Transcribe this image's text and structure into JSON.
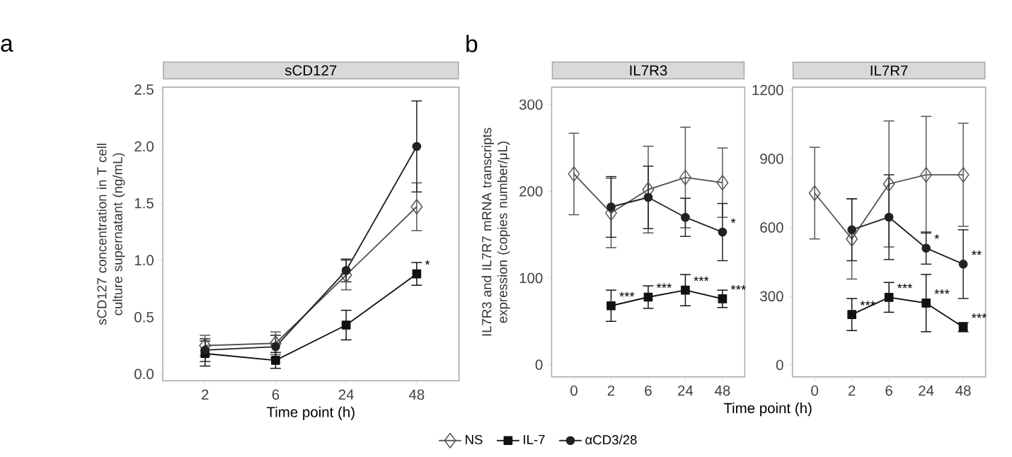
{
  "chart_data": [
    {
      "type": "line",
      "title": "sCD127",
      "xlabel": "Time point (h)",
      "ylabel": "sCD127 concentration in T cell culture supernatant (ng/mL)",
      "categories": [
        "2",
        "6",
        "24",
        "48"
      ],
      "ylim": [
        -0.06,
        2.52
      ],
      "yticks": [
        {
          "value": 0,
          "label": "0.0"
        },
        0.5,
        {
          "value": 1,
          "label": "1.0"
        },
        1.5,
        {
          "value": 2,
          "label": "2.0"
        },
        2.5
      ],
      "grid": false,
      "legend": "bottom",
      "series": [
        {
          "name": "NS",
          "color": "#555555",
          "marker": "diamond",
          "values": [
            0.25,
            0.27,
            0.87,
            1.47
          ],
          "errors": [
            0.09,
            0.1,
            0.13,
            0.21
          ]
        },
        {
          "name": "IL-7",
          "color": "#111111",
          "marker": "square",
          "values": [
            0.18,
            0.12,
            0.43,
            0.88
          ],
          "errors": [
            0.11,
            0.07,
            0.13,
            0.1
          ]
        },
        {
          "name": "αCD3/28",
          "color": "#222222",
          "marker": "circle",
          "values": [
            0.21,
            0.24,
            0.91,
            2.0
          ],
          "errors": [
            0.1,
            0.1,
            0.1,
            0.4
          ]
        }
      ],
      "annotations": [
        "a",
        {
          "text": "*",
          "x": "48",
          "y": 0.88
        }
      ]
    },
    {
      "type": "line",
      "title": "IL7R3",
      "xlabel": "Time point (h)",
      "ylabel": "IL7R3 and IL7R7 mRNA transcripts expression (copies number/μL)",
      "categories": [
        "0",
        "2",
        "6",
        "24",
        "48"
      ],
      "ylim": [
        -14,
        320
      ],
      "yticks": [
        0,
        100,
        200,
        300
      ],
      "grid": false,
      "legend": false,
      "series": [
        {
          "color": "#555555",
          "marker": "diamond",
          "values": [
            220,
            175,
            202,
            216,
            210
          ],
          "errors": [
            47,
            40,
            50,
            58,
            40
          ]
        },
        {
          "color": "#111111",
          "marker": "square",
          "values": [
            null,
            68,
            78,
            86,
            76
          ],
          "errors": [
            null,
            18,
            13,
            18,
            10
          ]
        },
        {
          "color": "#222222",
          "marker": "circle",
          "values": [
            null,
            182,
            193,
            170,
            153
          ],
          "errors": [
            null,
            35,
            36,
            22,
            33
          ]
        }
      ],
      "annotations": [
        "b",
        {
          "text": "*",
          "x": "48",
          "y": 153
        },
        {
          "text": "***",
          "x": "2",
          "y": 68
        },
        {
          "text": "***",
          "x": "6",
          "y": 78
        },
        {
          "text": "***",
          "x": "24",
          "y": 86
        },
        {
          "text": "***",
          "x": "48",
          "y": 76
        }
      ]
    },
    {
      "type": "line",
      "title": "IL7R7",
      "categories": [
        "0",
        "2",
        "6",
        "24",
        "48"
      ],
      "ylim": [
        -52,
        1212
      ],
      "yticks": [
        0,
        300,
        600,
        900,
        1200
      ],
      "grid": false,
      "legend": false,
      "series": [
        {
          "color": "#555555",
          "marker": "diamond",
          "values": [
            750,
            550,
            790,
            830,
            830
          ],
          "errors": [
            200,
            175,
            275,
            255,
            225
          ]
        },
        {
          "color": "#111111",
          "marker": "square",
          "values": [
            null,
            220,
            295,
            270,
            165
          ],
          "errors": [
            null,
            70,
            65,
            125,
            20
          ]
        },
        {
          "color": "#222222",
          "marker": "circle",
          "values": [
            null,
            590,
            645,
            510,
            440
          ],
          "errors": [
            null,
            135,
            185,
            70,
            150
          ]
        }
      ],
      "annotations": [
        {
          "text": "*",
          "x": "24",
          "y": 510
        },
        {
          "text": "**",
          "x": "48",
          "y": 440
        },
        {
          "text": "***",
          "x": "2",
          "y": 220
        },
        {
          "text": "***",
          "x": "6",
          "y": 295
        },
        {
          "text": "***",
          "x": "24",
          "y": 270
        },
        {
          "text": "***",
          "x": "48",
          "y": 165
        }
      ]
    }
  ]
}
